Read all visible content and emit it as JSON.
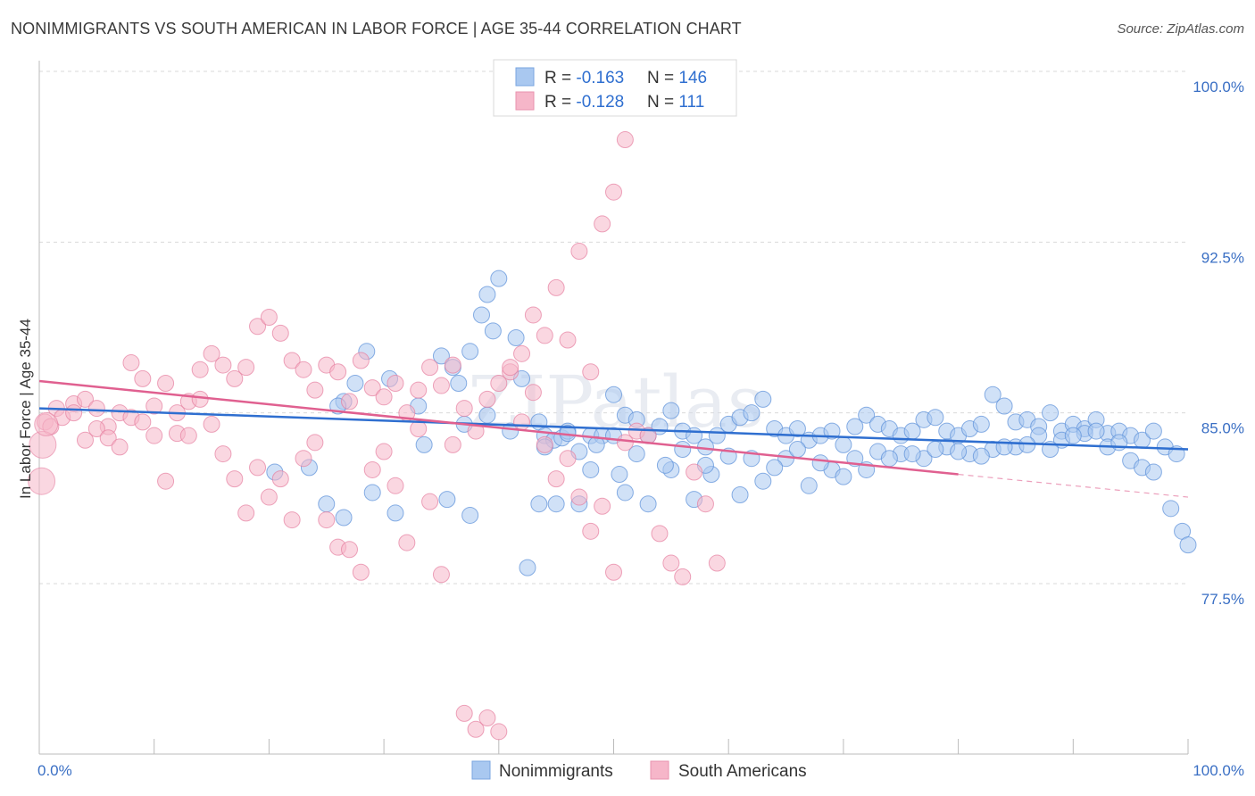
{
  "title": "NONIMMIGRANTS VS SOUTH AMERICAN IN LABOR FORCE | AGE 35-44 CORRELATION CHART",
  "source": "Source: ZipAtlas.com",
  "watermark": "ZIPatlas",
  "legend": {
    "rows": [
      {
        "r_label": "R = ",
        "r_value": "-0.163",
        "n_label": "N = ",
        "n_value": "146",
        "color": "#a9c8f0"
      },
      {
        "r_label": "R = ",
        "r_value": "-0.128",
        "n_label": "N = ",
        "n_value": "111",
        "color": "#f6b6c9"
      }
    ]
  },
  "chart_data": {
    "type": "scatter",
    "title": "NONIMMIGRANTS VS SOUTH AMERICAN IN LABOR FORCE | AGE 35-44 CORRELATION CHART",
    "xlabel": "",
    "ylabel": "In Labor Force | Age 35-44",
    "xlim": [
      0,
      100
    ],
    "ylim": [
      70.0,
      100.9
    ],
    "x_tick_labels": [
      "0.0%",
      "100.0%"
    ],
    "y_ticks": [
      77.5,
      85.0,
      92.5,
      100.0
    ],
    "y_tick_labels": [
      "77.5%",
      "85.0%",
      "92.5%",
      "100.0%"
    ],
    "grid": true,
    "legend_placement": "top-center",
    "series": [
      {
        "name": "Nonimmigrants",
        "color": "#a9c8f0",
        "stroke": "#5a8fd8",
        "trend_color": "#2f6fd0",
        "trend": {
          "x0": 0,
          "y0": 85.2,
          "x1": 100,
          "y1": 83.4
        },
        "points": [
          [
            26.5,
            85.5
          ],
          [
            27.5,
            86.3
          ],
          [
            26,
            85.3
          ],
          [
            28.5,
            87.7
          ],
          [
            30.5,
            86.5
          ],
          [
            33,
            85.3
          ],
          [
            35,
            87.5
          ],
          [
            36,
            87.0
          ],
          [
            36.5,
            86.3
          ],
          [
            37.5,
            87.7
          ],
          [
            38.5,
            89.3
          ],
          [
            39,
            90.2
          ],
          [
            39.5,
            88.6
          ],
          [
            40,
            90.9
          ],
          [
            41.5,
            88.3
          ],
          [
            42,
            86.5
          ],
          [
            43.5,
            84.6
          ],
          [
            44,
            84.0
          ],
          [
            44.8,
            83.8
          ],
          [
            45.5,
            83.9
          ],
          [
            46,
            84.2
          ],
          [
            47,
            83.3
          ],
          [
            48,
            84.0
          ],
          [
            49,
            84.0
          ],
          [
            50,
            85.8
          ],
          [
            51,
            84.9
          ],
          [
            52,
            84.7
          ],
          [
            53,
            84.0
          ],
          [
            54,
            84.4
          ],
          [
            55,
            85.1
          ],
          [
            56,
            84.2
          ],
          [
            57,
            84.0
          ],
          [
            58,
            83.5
          ],
          [
            59,
            84.0
          ],
          [
            60,
            84.5
          ],
          [
            61,
            84.8
          ],
          [
            62,
            85.0
          ],
          [
            63,
            85.6
          ],
          [
            64,
            84.3
          ],
          [
            65,
            84.0
          ],
          [
            66,
            84.3
          ],
          [
            67,
            83.8
          ],
          [
            68,
            84.0
          ],
          [
            69,
            84.2
          ],
          [
            70,
            83.6
          ],
          [
            71,
            84.4
          ],
          [
            72,
            84.9
          ],
          [
            73,
            84.5
          ],
          [
            74,
            84.3
          ],
          [
            75,
            84.0
          ],
          [
            76,
            84.2
          ],
          [
            77,
            84.7
          ],
          [
            78,
            84.8
          ],
          [
            79,
            84.2
          ],
          [
            80,
            84.0
          ],
          [
            81,
            84.3
          ],
          [
            82,
            84.5
          ],
          [
            83,
            85.8
          ],
          [
            84,
            85.3
          ],
          [
            85,
            84.6
          ],
          [
            86,
            84.7
          ],
          [
            87,
            84.4
          ],
          [
            88,
            85.0
          ],
          [
            89,
            84.2
          ],
          [
            90,
            84.5
          ],
          [
            91,
            84.3
          ],
          [
            92,
            84.7
          ],
          [
            93,
            84.1
          ],
          [
            94,
            84.2
          ],
          [
            95,
            84.0
          ],
          [
            96,
            83.8
          ],
          [
            97,
            84.2
          ],
          [
            98,
            83.5
          ],
          [
            99,
            83.2
          ],
          [
            20.5,
            82.4
          ],
          [
            23.5,
            82.6
          ],
          [
            25,
            81.0
          ],
          [
            26.5,
            80.4
          ],
          [
            29,
            81.5
          ],
          [
            31,
            80.6
          ],
          [
            35.5,
            81.2
          ],
          [
            37.5,
            80.5
          ],
          [
            42.5,
            78.2
          ],
          [
            43.5,
            81.0
          ],
          [
            45,
            81.0
          ],
          [
            47,
            81.0
          ],
          [
            48,
            82.5
          ],
          [
            50.5,
            82.3
          ],
          [
            51,
            81.5
          ],
          [
            53,
            81.0
          ],
          [
            55,
            82.5
          ],
          [
            57,
            81.2
          ],
          [
            58.5,
            82.3
          ],
          [
            61,
            81.4
          ],
          [
            63,
            82.0
          ],
          [
            65,
            83.0
          ],
          [
            67,
            81.8
          ],
          [
            69,
            82.5
          ],
          [
            71,
            83.0
          ],
          [
            73,
            83.3
          ],
          [
            75,
            83.2
          ],
          [
            77,
            83.0
          ],
          [
            79,
            83.5
          ],
          [
            81,
            83.2
          ],
          [
            83,
            83.4
          ],
          [
            85,
            83.5
          ],
          [
            87,
            84.0
          ],
          [
            89,
            83.8
          ],
          [
            91,
            84.1
          ],
          [
            93,
            83.5
          ],
          [
            95,
            82.9
          ],
          [
            96,
            82.6
          ],
          [
            97,
            82.4
          ],
          [
            98.5,
            80.8
          ],
          [
            99.5,
            79.8
          ],
          [
            100,
            79.2
          ],
          [
            33.5,
            83.6
          ],
          [
            37,
            84.5
          ],
          [
            39,
            84.9
          ],
          [
            41,
            84.2
          ],
          [
            44,
            83.5
          ],
          [
            46,
            84.1
          ],
          [
            48.5,
            83.6
          ],
          [
            50,
            84.0
          ],
          [
            52,
            83.2
          ],
          [
            54.5,
            82.7
          ],
          [
            56,
            83.4
          ],
          [
            58,
            82.7
          ],
          [
            60,
            83.1
          ],
          [
            62,
            83.0
          ],
          [
            64,
            82.6
          ],
          [
            66,
            83.4
          ],
          [
            68,
            82.8
          ],
          [
            70,
            82.2
          ],
          [
            72,
            82.5
          ],
          [
            74,
            83.0
          ],
          [
            76,
            83.2
          ],
          [
            78,
            83.4
          ],
          [
            80,
            83.3
          ],
          [
            82,
            83.1
          ],
          [
            84,
            83.5
          ],
          [
            86,
            83.6
          ],
          [
            88,
            83.4
          ],
          [
            90,
            84.0
          ],
          [
            92,
            84.2
          ],
          [
            94,
            83.7
          ]
        ]
      },
      {
        "name": "South Americans",
        "color": "#f6b6c9",
        "stroke": "#e57fa0",
        "trend_color": "#e06090",
        "trend": {
          "x0": 0,
          "y0": 86.4,
          "x1": 80,
          "y1": 82.3
        },
        "trend_dashed": {
          "x0": 80,
          "y0": 82.3,
          "x1": 100,
          "y1": 81.3
        },
        "points": [
          [
            0.5,
            84.6
          ],
          [
            1.0,
            84.4
          ],
          [
            1.5,
            85.2
          ],
          [
            2,
            84.8
          ],
          [
            3,
            85.4
          ],
          [
            4,
            85.6
          ],
          [
            5,
            85.2
          ],
          [
            6,
            84.4
          ],
          [
            7,
            85.0
          ],
          [
            8,
            87.2
          ],
          [
            9,
            86.5
          ],
          [
            10,
            85.3
          ],
          [
            11,
            86.3
          ],
          [
            12,
            85.0
          ],
          [
            13,
            85.5
          ],
          [
            14,
            86.9
          ],
          [
            15,
            87.6
          ],
          [
            16,
            87.1
          ],
          [
            17,
            86.5
          ],
          [
            18,
            87.0
          ],
          [
            19,
            88.8
          ],
          [
            20,
            89.2
          ],
          [
            21,
            88.5
          ],
          [
            22,
            87.3
          ],
          [
            23,
            86.9
          ],
          [
            24,
            86.0
          ],
          [
            25,
            87.1
          ],
          [
            26,
            86.8
          ],
          [
            27,
            85.5
          ],
          [
            28,
            87.3
          ],
          [
            29,
            86.1
          ],
          [
            30,
            85.7
          ],
          [
            31,
            86.3
          ],
          [
            32,
            85.0
          ],
          [
            33,
            86.0
          ],
          [
            34,
            87.0
          ],
          [
            35,
            86.2
          ],
          [
            36,
            87.1
          ],
          [
            37,
            85.2
          ],
          [
            38,
            84.2
          ],
          [
            39,
            85.6
          ],
          [
            40,
            86.3
          ],
          [
            41,
            86.8
          ],
          [
            42,
            87.6
          ],
          [
            43,
            89.3
          ],
          [
            44,
            88.4
          ],
          [
            45,
            90.5
          ],
          [
            46,
            88.2
          ],
          [
            47,
            92.1
          ],
          [
            48,
            86.8
          ],
          [
            49,
            93.3
          ],
          [
            50,
            94.7
          ],
          [
            51,
            97.0
          ],
          [
            52,
            100.0
          ],
          [
            53,
            100.0
          ],
          [
            54,
            100.0
          ],
          [
            3,
            85.0
          ],
          [
            4,
            83.8
          ],
          [
            5,
            84.3
          ],
          [
            6,
            83.9
          ],
          [
            7,
            83.5
          ],
          [
            8,
            84.8
          ],
          [
            9,
            84.6
          ],
          [
            10,
            84.0
          ],
          [
            11,
            82.0
          ],
          [
            12,
            84.1
          ],
          [
            13,
            84.0
          ],
          [
            14,
            85.6
          ],
          [
            15,
            84.5
          ],
          [
            16,
            83.2
          ],
          [
            17,
            82.1
          ],
          [
            18,
            80.6
          ],
          [
            19,
            82.6
          ],
          [
            20,
            81.3
          ],
          [
            21,
            82.1
          ],
          [
            22,
            80.3
          ],
          [
            23,
            83.0
          ],
          [
            24,
            83.7
          ],
          [
            25,
            80.3
          ],
          [
            26,
            79.1
          ],
          [
            27,
            79.0
          ],
          [
            28,
            78.0
          ],
          [
            29,
            82.5
          ],
          [
            30,
            83.3
          ],
          [
            31,
            81.8
          ],
          [
            32,
            79.3
          ],
          [
            33,
            84.3
          ],
          [
            34,
            81.1
          ],
          [
            35,
            77.9
          ],
          [
            36,
            83.6
          ],
          [
            37,
            71.8
          ],
          [
            38,
            71.1
          ],
          [
            39,
            71.6
          ],
          [
            40,
            71.0
          ],
          [
            41,
            87.0
          ],
          [
            42,
            84.6
          ],
          [
            43,
            85.9
          ],
          [
            44,
            83.6
          ],
          [
            45,
            82.1
          ],
          [
            46,
            83.0
          ],
          [
            47,
            81.3
          ],
          [
            48,
            79.8
          ],
          [
            49,
            80.9
          ],
          [
            50,
            78.0
          ],
          [
            51,
            83.7
          ],
          [
            52,
            84.2
          ],
          [
            53,
            84.0
          ],
          [
            54,
            79.7
          ],
          [
            55,
            78.4
          ],
          [
            56,
            77.8
          ],
          [
            57,
            82.4
          ],
          [
            58,
            81.0
          ],
          [
            59,
            78.4
          ]
        ]
      }
    ]
  },
  "bottom_legend": [
    "Nonimmigrants",
    "South Americans"
  ]
}
